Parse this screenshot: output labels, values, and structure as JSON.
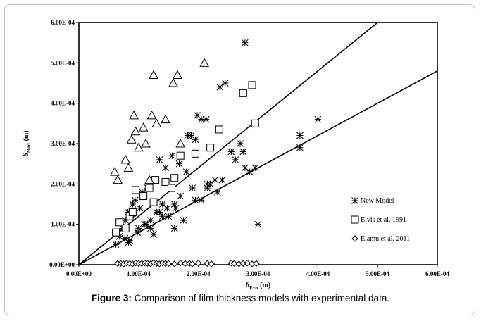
{
  "caption": {
    "label": "Figure 3:",
    "text": " Comparison of film thickness models with experimental data."
  },
  "chart_data": {
    "type": "scatter",
    "xlabel": "δExp (m)",
    "xlabel_main": "δ",
    "xlabel_sub": "Exp",
    "xlabel_unit": "(m)",
    "ylabel": "δMod (m)",
    "ylabel_main": "δ",
    "ylabel_sub": "Mod",
    "ylabel_unit": "(m)",
    "xlim": [
      0,
      0.0006
    ],
    "ylim": [
      0,
      0.0006
    ],
    "x_ticks": [
      0,
      0.0001,
      0.0002,
      0.0003,
      0.0004,
      0.0005,
      0.0006
    ],
    "x_tick_labels": [
      "0.00E+00",
      "1.00E-04",
      "2.00E-04",
      "3.00E-04",
      "4.00E-04",
      "5.00E-04",
      "6.00E-04"
    ],
    "y_ticks": [
      0,
      0.0001,
      0.0002,
      0.0003,
      0.0004,
      0.0005,
      0.0006
    ],
    "y_tick_labels": [
      "0.00E+00",
      "1.00E-04",
      "2.00E-04",
      "3.00E-04",
      "4.00E-04",
      "5.00E-04",
      "6.00E-04"
    ],
    "grid": false,
    "legend_position": "right",
    "reference_lines": [
      {
        "slope": 1.2
      },
      {
        "slope": 0.8
      }
    ],
    "series": [
      {
        "name": "New Model",
        "marker": "asterisk",
        "x": [
          6.2e-05,
          6.8e-05,
          7.3e-05,
          7.8e-05,
          8.2e-05,
          8.5e-05,
          9e-05,
          9.4e-05,
          9.8e-05,
          0.000102,
          0.000106,
          0.00011,
          0.000115,
          0.00012,
          0.000125,
          0.00013,
          0.000135,
          0.00014,
          0.000145,
          0.00015,
          0.000156,
          0.000162,
          0.000168,
          0.000175,
          0.000182,
          0.00019,
          0.000198,
          0.000205,
          0.000213,
          0.00022,
          0.000228,
          0.000236,
          0.000245,
          0.000255,
          0.000262,
          0.00027,
          0.000278,
          0.000286,
          0.000295,
          0.0003,
          0.00037,
          0.0004,
          0.000278,
          0.00024,
          0.000232,
          0.000215,
          0.000195,
          0.00017,
          0.00016,
          0.00014,
          0.000125,
          0.000112,
          0.0001,
          9e-05,
          8.3e-05,
          7.7e-05,
          7.2e-05,
          0.00012,
          0.000135,
          0.000148,
          0.00016,
          0.00018,
          0.000215,
          0.000275,
          0.00037,
          0.000188,
          0.000195,
          0.000205
        ],
        "y": [
          5e-05,
          7e-05,
          9e-05,
          0.00011,
          0.00013,
          6e-05,
          0.00012,
          0.00016,
          8e-05,
          0.00014,
          0.00018,
          0.0001,
          0.00019,
          0.00011,
          0.00021,
          0.00013,
          0.00026,
          0.00015,
          0.00024,
          0.00012,
          0.00027,
          0.00014,
          0.00025,
          0.00011,
          0.00032,
          0.00019,
          0.00037,
          0.00016,
          0.00036,
          0.0002,
          0.00021,
          0.00044,
          0.00045,
          0.00028,
          0.00026,
          0.0003,
          0.00055,
          0.00023,
          0.00024,
          0.0001,
          0.00029,
          0.00036,
          0.00024,
          0.00021,
          0.00018,
          0.00019,
          0.00016,
          0.00017,
          9e-05,
          0.00012,
          7.5e-05,
          0.0001,
          9e-05,
          0.00015,
          5.5e-05,
          6.5e-05,
          0.000105,
          9e-05,
          0.00013,
          0.00014,
          0.00015,
          0.00023,
          0.0002,
          0.00028,
          0.00032,
          0.00032,
          0.00031,
          0.00036
        ]
      },
      {
        "name": "Elvis et al. 1991",
        "marker": "square",
        "x": [
          6.2e-05,
          6.8e-05,
          7.8e-05,
          8.5e-05,
          9e-05,
          9.5e-05,
          0.000108,
          0.000118,
          0.000125,
          0.000128,
          0.000145,
          0.000155,
          0.00016,
          0.00017,
          0.000195,
          0.00022,
          0.000235,
          0.000275,
          0.00029,
          0.000295
        ],
        "y": [
          8e-05,
          0.000105,
          9e-05,
          0.00012,
          0.00013,
          0.000185,
          0.00017,
          0.00019,
          0.000155,
          0.00021,
          0.000205,
          0.00019,
          0.000215,
          0.00027,
          0.000275,
          0.00029,
          0.000335,
          0.000425,
          0.000445,
          0.00035
        ]
      },
      {
        "name": "Elamu et al. 2011",
        "marker": "diamond",
        "x": [
          6.5e-05,
          7e-05,
          7.5e-05,
          8e-05,
          8.5e-05,
          9e-05,
          9.5e-05,
          0.0001,
          0.000105,
          0.00011,
          0.000115,
          0.00012,
          0.000125,
          0.00013,
          0.000135,
          0.00014,
          0.000145,
          0.00015,
          0.00016,
          0.00017,
          0.000178,
          0.000185,
          0.00019,
          0.0002,
          0.000215,
          0.000222,
          0.000255,
          0.00026,
          0.000268,
          0.000275,
          0.000282,
          0.00029,
          0.000297
        ],
        "y": [
          3e-06,
          3e-06,
          2e-06,
          4e-06,
          3e-06,
          2e-06,
          4e-06,
          3e-06,
          3e-06,
          4e-06,
          3e-06,
          2e-06,
          5e-06,
          3e-06,
          2e-06,
          4e-06,
          3e-06,
          3e-06,
          2e-06,
          4e-06,
          3e-06,
          3e-06,
          2e-06,
          4e-06,
          3e-06,
          2e-06,
          4e-06,
          3e-06,
          2e-06,
          3e-06,
          4e-06,
          2e-06,
          3e-06
        ]
      },
      {
        "name": "",
        "marker": "triangle",
        "x": [
          6e-05,
          6.5e-05,
          7.8e-05,
          8.3e-05,
          8.8e-05,
          9.2e-05,
          9.5e-05,
          0.0001,
          0.000108,
          0.000112,
          0.000118,
          0.000122,
          0.000125,
          0.00013,
          0.000145,
          0.000158,
          0.000165,
          0.00017,
          0.00021
        ],
        "y": [
          0.00023,
          0.00021,
          0.00026,
          0.00024,
          0.00031,
          0.00037,
          0.00033,
          0.00029,
          0.00034,
          0.0003,
          0.00021,
          0.00037,
          0.00047,
          0.00035,
          0.00036,
          0.00045,
          0.00047,
          0.0003,
          0.0005
        ]
      }
    ]
  }
}
